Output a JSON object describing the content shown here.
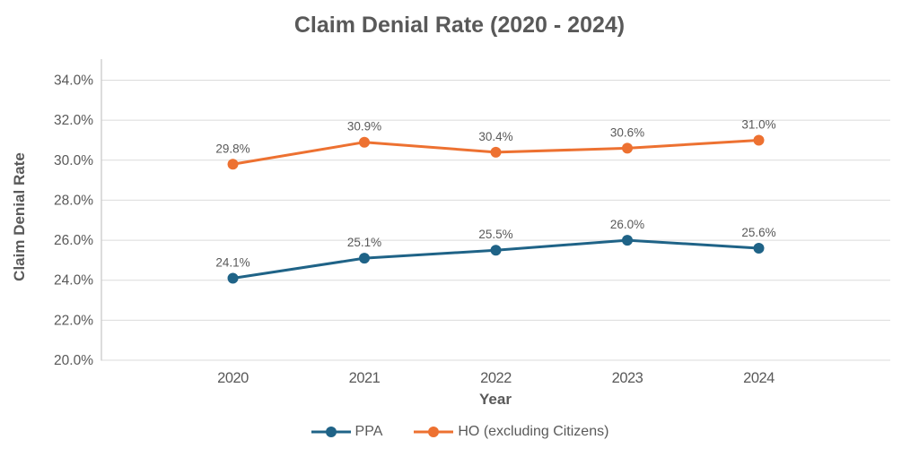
{
  "chart_data": {
    "type": "line",
    "title": "Claim Denial Rate (2020 - 2024)",
    "xlabel": "Year",
    "ylabel": "Claim Denial Rate",
    "categories": [
      "2020",
      "2021",
      "2022",
      "2023",
      "2024"
    ],
    "series": [
      {
        "name": "PPA",
        "color": "#1F6387",
        "values": [
          24.1,
          25.1,
          25.5,
          26.0,
          25.6
        ],
        "data_labels": [
          "24.1%",
          "25.1%",
          "25.5%",
          "26.0%",
          "25.6%"
        ]
      },
      {
        "name": "HO (excluding Citizens)",
        "color": "#ED7131",
        "values": [
          29.8,
          30.9,
          30.4,
          30.6,
          31.0
        ],
        "data_labels": [
          "29.8%",
          "30.9%",
          "30.4%",
          "30.6%",
          "31.0%"
        ]
      }
    ],
    "ylim": [
      20,
      34
    ],
    "ytick_step": 2,
    "ytick_labels": [
      "20.0%",
      "22.0%",
      "24.0%",
      "26.0%",
      "28.0%",
      "30.0%",
      "32.0%",
      "34.0%"
    ],
    "grid": true,
    "legend_position": "bottom",
    "colors": {
      "gridline": "#DBDBDB",
      "axis_line": "#C6C6C6",
      "text": "#595959"
    }
  }
}
